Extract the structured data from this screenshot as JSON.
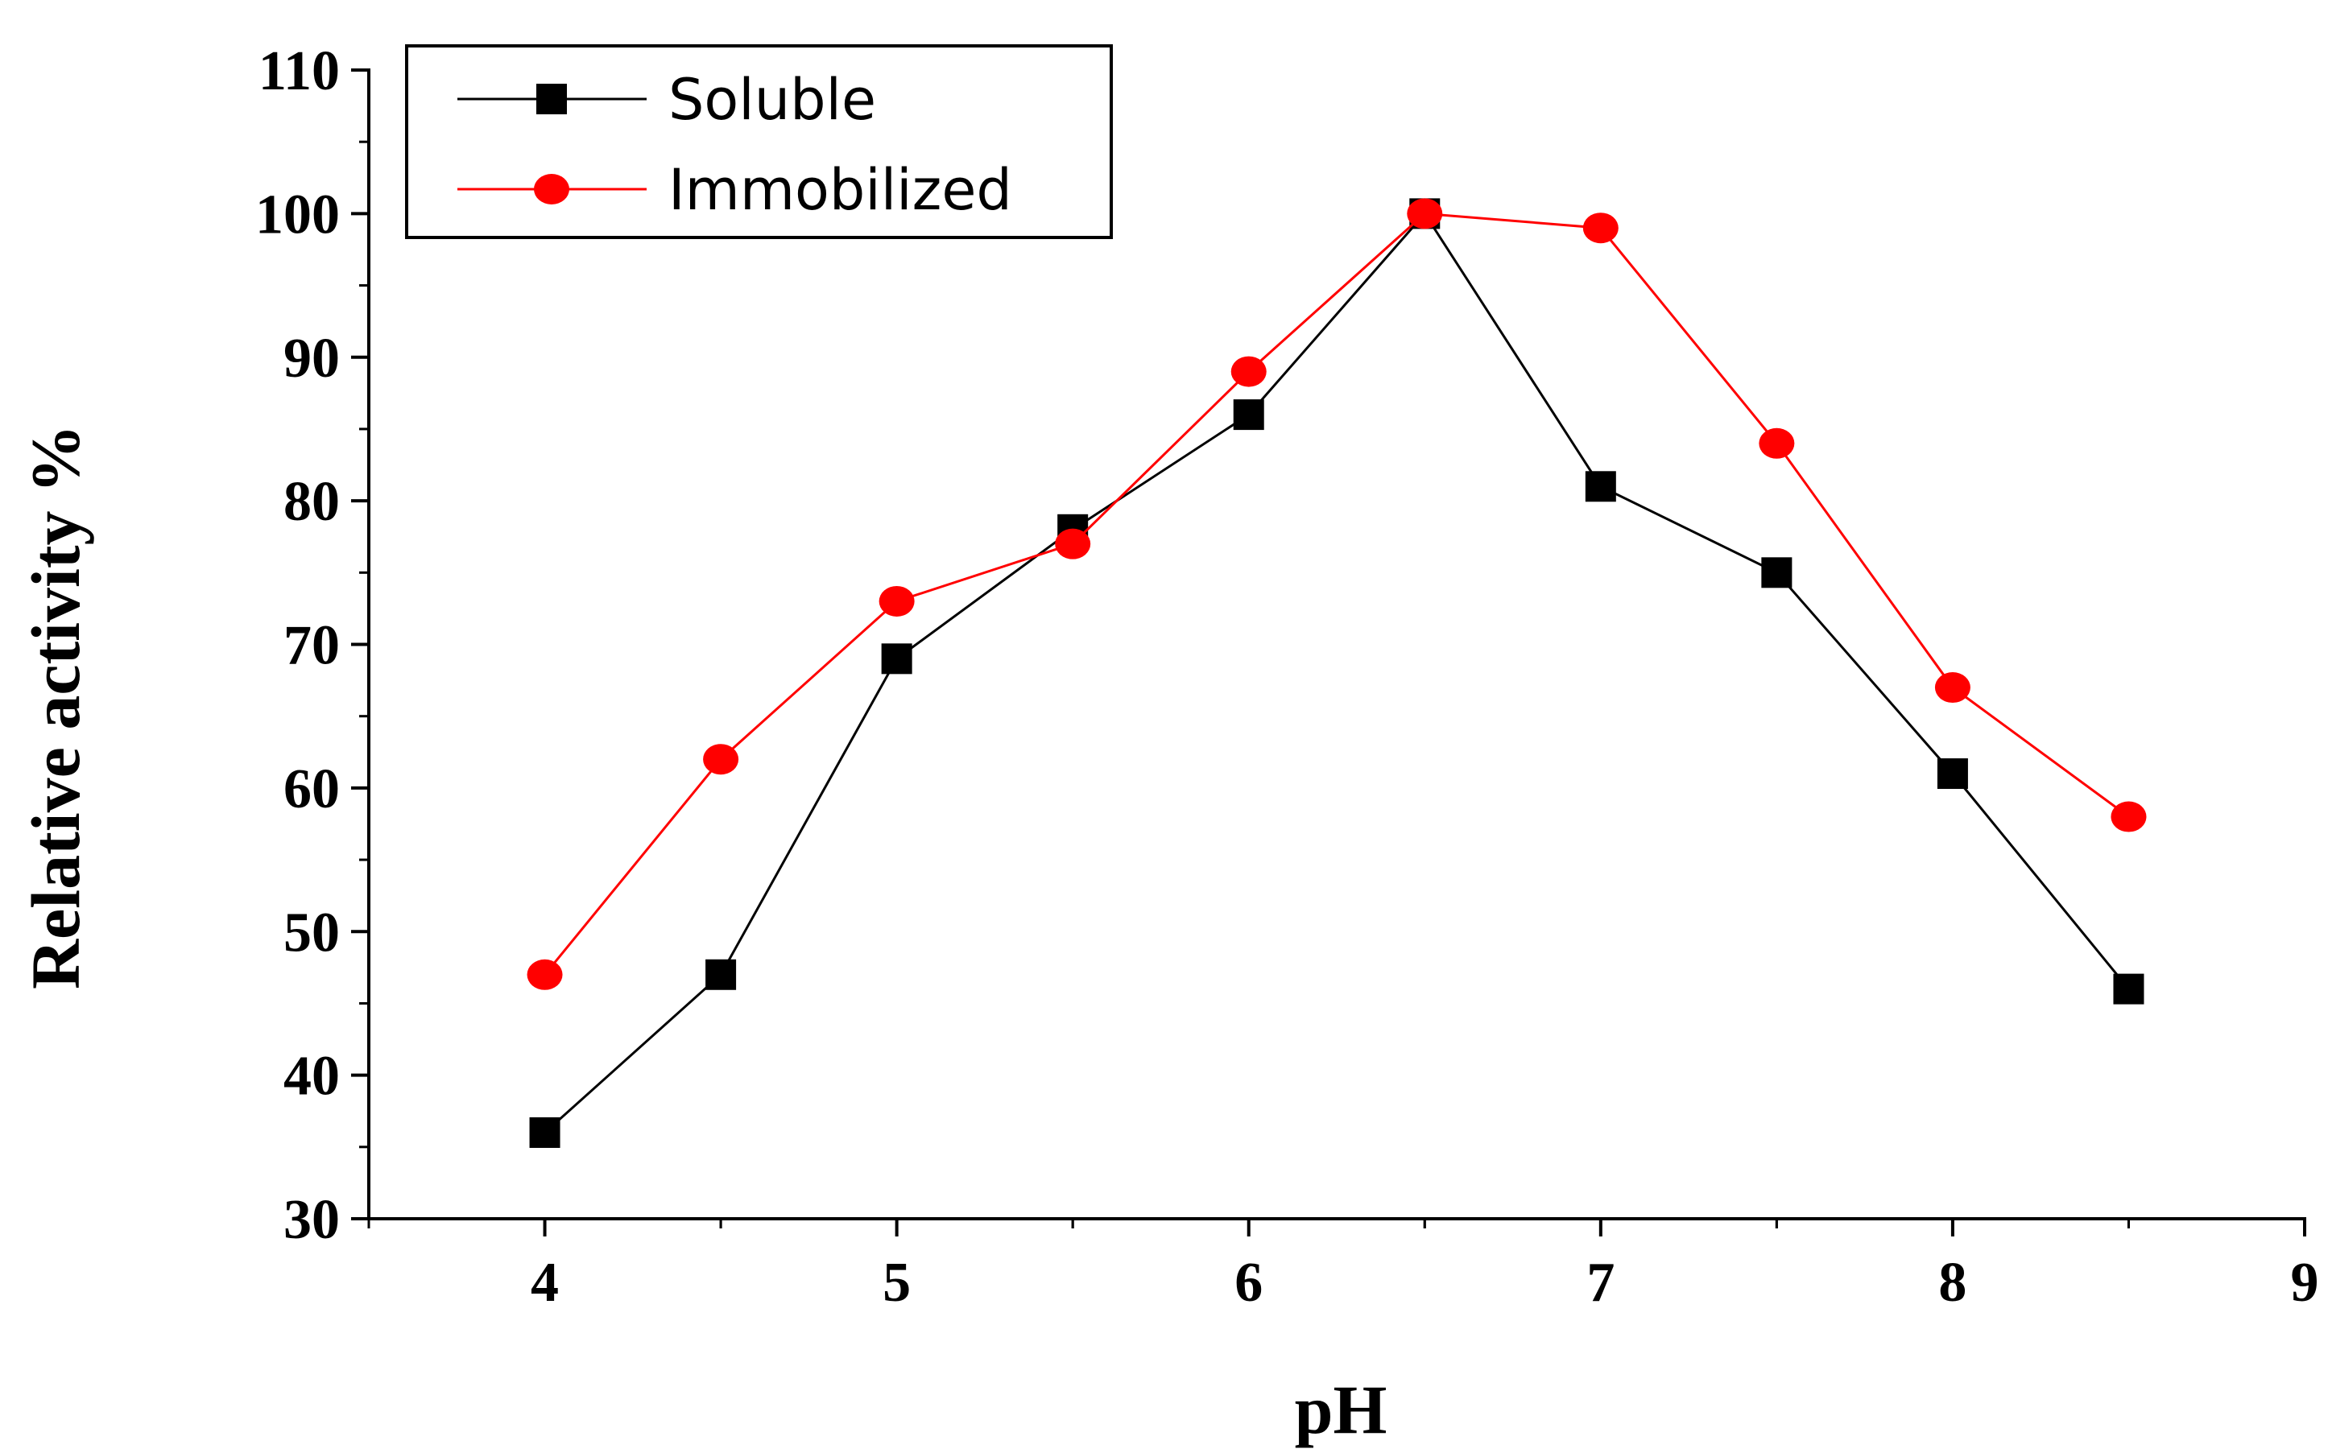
{
  "chart_data": {
    "type": "line",
    "title": "",
    "xlabel": "pH",
    "ylabel": "Relative activity %",
    "xlim": [
      3.5,
      9
    ],
    "ylim": [
      30,
      110
    ],
    "xticks": [
      4,
      5,
      6,
      7,
      8,
      9
    ],
    "yticks": [
      30,
      40,
      50,
      60,
      70,
      80,
      90,
      100,
      110
    ],
    "x": [
      4,
      4.5,
      5,
      5.5,
      6,
      6.5,
      7,
      7.5,
      8,
      8.5
    ],
    "legend_position": "top-left",
    "grid": false,
    "series": [
      {
        "name": "Soluble",
        "marker": "square",
        "color": "#000000",
        "values": [
          36,
          47,
          69,
          78,
          86,
          100,
          81,
          75,
          61,
          46
        ]
      },
      {
        "name": "Immobilized",
        "marker": "circle",
        "color": "#ff0000",
        "values": [
          47,
          62,
          73,
          77,
          89,
          100,
          99,
          84,
          67,
          58
        ]
      }
    ]
  }
}
